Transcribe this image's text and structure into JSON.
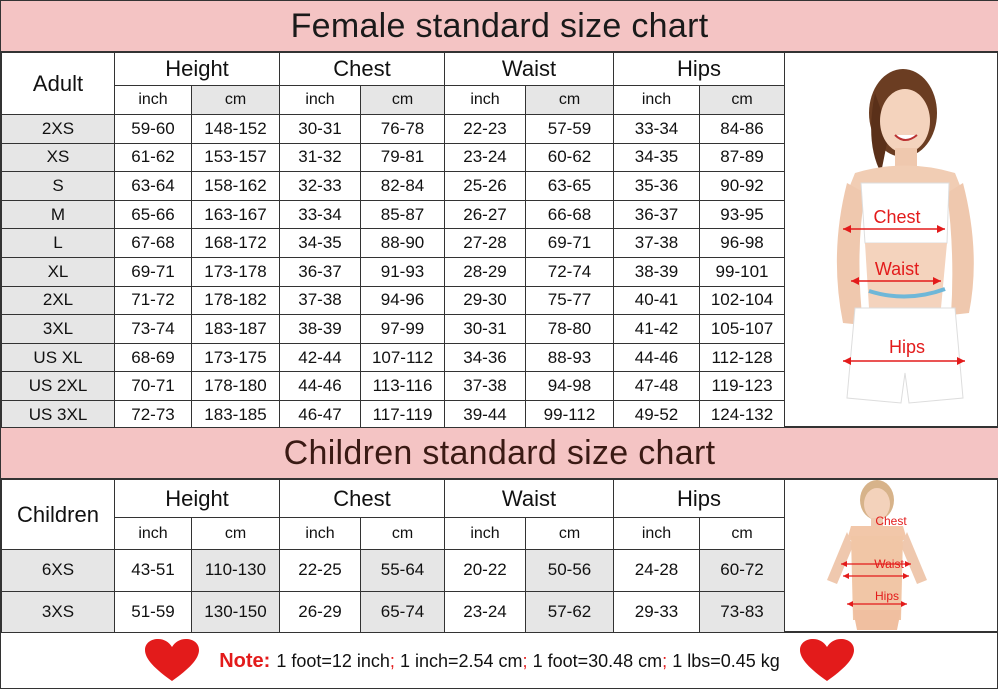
{
  "female": {
    "title": "Female standard size chart",
    "corner": "Adult",
    "groups": [
      "Height",
      "Chest",
      "Waist",
      "Hips"
    ],
    "units": [
      "inch",
      "cm"
    ],
    "rows": [
      {
        "label": "2XS",
        "values": [
          "59-60",
          "148-152",
          "30-31",
          "76-78",
          "22-23",
          "57-59",
          "33-34",
          "84-86"
        ]
      },
      {
        "label": "XS",
        "values": [
          "61-62",
          "153-157",
          "31-32",
          "79-81",
          "23-24",
          "60-62",
          "34-35",
          "87-89"
        ]
      },
      {
        "label": "S",
        "values": [
          "63-64",
          "158-162",
          "32-33",
          "82-84",
          "25-26",
          "63-65",
          "35-36",
          "90-92"
        ]
      },
      {
        "label": "M",
        "values": [
          "65-66",
          "163-167",
          "33-34",
          "85-87",
          "26-27",
          "66-68",
          "36-37",
          "93-95"
        ]
      },
      {
        "label": "L",
        "values": [
          "67-68",
          "168-172",
          "34-35",
          "88-90",
          "27-28",
          "69-71",
          "37-38",
          "96-98"
        ]
      },
      {
        "label": "XL",
        "values": [
          "69-71",
          "173-178",
          "36-37",
          "91-93",
          "28-29",
          "72-74",
          "38-39",
          "99-101"
        ]
      },
      {
        "label": "2XL",
        "values": [
          "71-72",
          "178-182",
          "37-38",
          "94-96",
          "29-30",
          "75-77",
          "40-41",
          "102-104"
        ]
      },
      {
        "label": "3XL",
        "values": [
          "73-74",
          "183-187",
          "38-39",
          "97-99",
          "30-31",
          "78-80",
          "41-42",
          "105-107"
        ]
      },
      {
        "label": "US XL",
        "values": [
          "68-69",
          "173-175",
          "42-44",
          "107-112",
          "34-36",
          "88-93",
          "44-46",
          "112-128"
        ]
      },
      {
        "label": "US 2XL",
        "values": [
          "70-71",
          "178-180",
          "44-46",
          "113-116",
          "37-38",
          "94-98",
          "47-48",
          "119-123"
        ]
      },
      {
        "label": "US 3XL",
        "values": [
          "72-73",
          "183-185",
          "46-47",
          "117-119",
          "39-44",
          "99-112",
          "49-52",
          "124-132"
        ]
      }
    ],
    "figure_labels": {
      "chest": "Chest",
      "waist": "Waist",
      "hips": "Hips"
    }
  },
  "children": {
    "title": "Children standard size chart",
    "corner": "Children",
    "groups": [
      "Height",
      "Chest",
      "Waist",
      "Hips"
    ],
    "units": [
      "inch",
      "cm"
    ],
    "rows": [
      {
        "label": "6XS",
        "values": [
          "43-51",
          "110-130",
          "22-25",
          "55-64",
          "20-22",
          "50-56",
          "24-28",
          "60-72"
        ]
      },
      {
        "label": "3XS",
        "values": [
          "51-59",
          "130-150",
          "26-29",
          "65-74",
          "23-24",
          "57-62",
          "29-33",
          "73-83"
        ]
      }
    ],
    "figure_labels": {
      "chest": "Chest",
      "waist": "Waist",
      "hips": "Hips"
    }
  },
  "note": {
    "label": "Note:",
    "items": [
      "1 foot=12 inch",
      "1 inch=2.54 cm",
      "1 foot=30.48 cm",
      "1 lbs=0.45 kg"
    ],
    "separator": ";"
  },
  "colors": {
    "banner": "#f4c4c4",
    "accent_red": "#e31b1b",
    "row_gray": "#e6e6e6"
  },
  "icons": [
    "heart-icon"
  ]
}
